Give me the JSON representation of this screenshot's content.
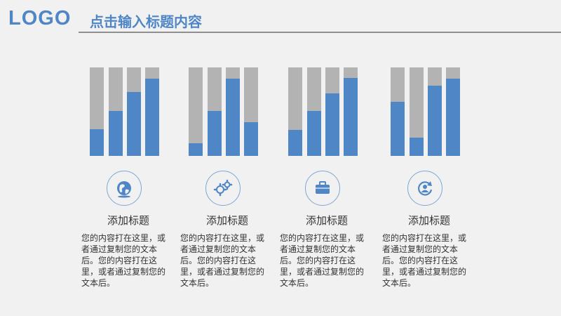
{
  "header": {
    "logo": "LOGO",
    "title": "点击输入标题内容"
  },
  "colors": {
    "accent": "#4f86c6",
    "track": "#b3b3b3"
  },
  "columns": [
    {
      "heading": "添加标题",
      "icon": "globe-icon",
      "bars": [
        0.3,
        0.51,
        0.72,
        0.87
      ],
      "text": "您的内容打在这里，或者通过复制您的文本后。您的内容打在这里，或者通过复制您的文本后。"
    },
    {
      "heading": "添加标题",
      "icon": "gears-icon",
      "bars": [
        0.14,
        0.51,
        0.87,
        0.38
      ],
      "text": "您的内容打在这里，或者通过复制您的文本后。您的内容打在这里，或者通过复制您的文本后。"
    },
    {
      "heading": "添加标题",
      "icon": "briefcase-icon",
      "bars": [
        0.29,
        0.51,
        0.71,
        0.88
      ],
      "text": "您的内容打在这里，或者通过复制您的文本后。您的内容打在这里，或者通过复制您的文本后。"
    },
    {
      "heading": "添加标题",
      "icon": "refresh-user-icon",
      "bars": [
        0.61,
        0.21,
        0.79,
        0.87
      ],
      "text": "您的内容打在这里，或者通过复制您的文本后。您的内容打在这里，或者通过复制您的文本后。"
    }
  ]
}
